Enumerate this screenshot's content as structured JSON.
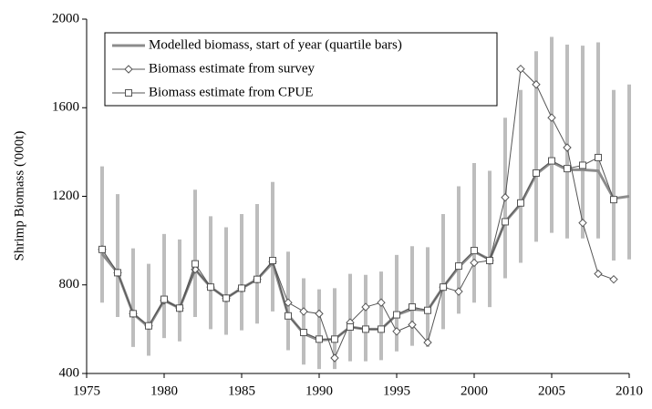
{
  "chart_data": {
    "type": "line",
    "y_label": "Shrimp Biomass ('000t)",
    "x": [
      1976,
      1977,
      1978,
      1979,
      1980,
      1981,
      1982,
      1983,
      1984,
      1985,
      1986,
      1987,
      1988,
      1989,
      1990,
      1991,
      1992,
      1993,
      1994,
      1995,
      1996,
      1997,
      1998,
      1999,
      2000,
      2001,
      2002,
      2003,
      2004,
      2005,
      2006,
      2007,
      2008,
      2009,
      2010
    ],
    "xlim": [
      1975,
      2010
    ],
    "xticks": [
      1975,
      1980,
      1985,
      1990,
      1995,
      2000,
      2005,
      2010
    ],
    "ylim": [
      400,
      2000
    ],
    "yticks": [
      400,
      800,
      1200,
      1600,
      2000
    ],
    "legend": "upper left",
    "series": [
      {
        "name": "Modelled biomass, start of year (quartile bars)",
        "color": "#8c8c8c",
        "bar_color": "#bdbdbd",
        "values": [
          940,
          855,
          670,
          610,
          730,
          695,
          870,
          790,
          740,
          785,
          825,
          900,
          665,
          580,
          550,
          555,
          610,
          600,
          600,
          665,
          690,
          685,
          790,
          880,
          950,
          915,
          1085,
          1165,
          1300,
          1355,
          1320,
          1320,
          1315,
          1190,
          1200
        ],
        "quartile_low": [
          720,
          655,
          520,
          480,
          560,
          545,
          655,
          600,
          575,
          595,
          625,
          680,
          505,
          440,
          420,
          420,
          455,
          455,
          460,
          500,
          525,
          520,
          600,
          670,
          720,
          700,
          830,
          900,
          995,
          1035,
          1010,
          1010,
          1010,
          910,
          915
        ],
        "quartile_high": [
          1335,
          1210,
          965,
          895,
          1030,
          1005,
          1230,
          1110,
          1060,
          1120,
          1165,
          1265,
          950,
          830,
          780,
          785,
          850,
          845,
          860,
          935,
          975,
          970,
          1120,
          1245,
          1350,
          1315,
          1555,
          1680,
          1855,
          1920,
          1885,
          1880,
          1895,
          1680,
          1705
        ]
      },
      {
        "name": "Biomass estimate from survey",
        "color": "#555555",
        "marker": "diamond",
        "values": [
          960,
          855,
          670,
          615,
          730,
          695,
          870,
          790,
          740,
          785,
          825,
          905,
          720,
          680,
          670,
          470,
          630,
          700,
          720,
          590,
          620,
          540,
          790,
          770,
          900,
          910,
          1195,
          1775,
          1705,
          1555,
          1420,
          1080,
          850,
          825,
          null
        ]
      },
      {
        "name": "Biomass estimate from CPUE",
        "color": "#555555",
        "marker": "square",
        "values": [
          960,
          855,
          670,
          615,
          735,
          695,
          895,
          790,
          740,
          785,
          825,
          910,
          660,
          585,
          555,
          555,
          610,
          600,
          600,
          665,
          700,
          685,
          790,
          885,
          955,
          910,
          1085,
          1170,
          1305,
          1360,
          1325,
          1340,
          1375,
          1185,
          null
        ]
      }
    ]
  }
}
